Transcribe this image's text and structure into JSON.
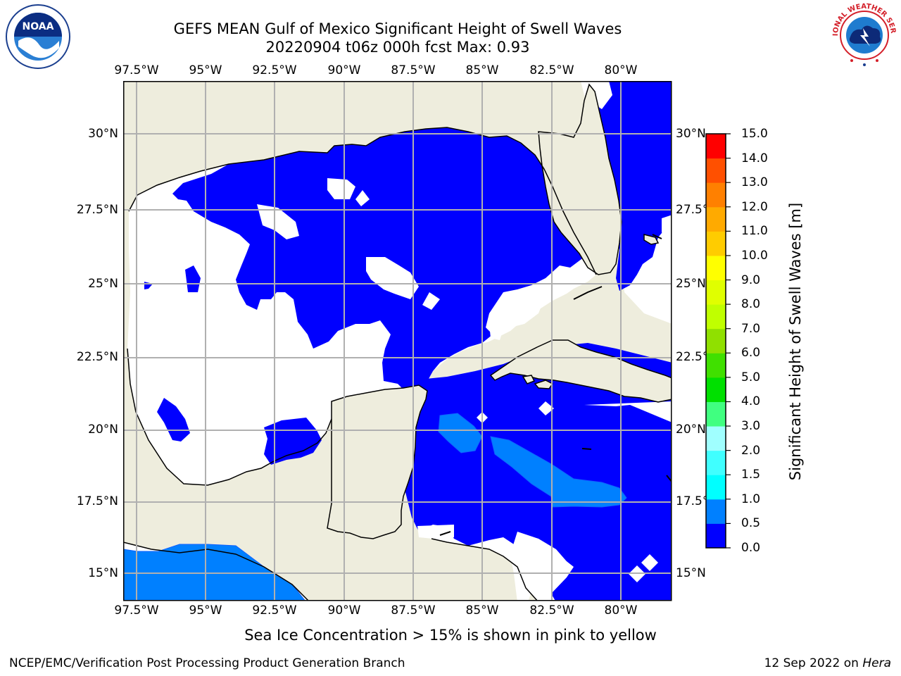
{
  "title_line1": "GEFS MEAN Gulf of Mexico Significant Height of Swell Waves",
  "title_line2": "20220904 t06z 000h fcst   Max: 0.93",
  "logos": {
    "left": "NOAA",
    "right": "NATIONAL WEATHER SERVICE"
  },
  "map": {
    "lon_range": [
      -98.5,
      -78.5
    ],
    "lat_range": [
      14.0,
      31.8
    ],
    "lon_ticks": [
      "97.5°W",
      "95°W",
      "92.5°W",
      "90°W",
      "87.5°W",
      "85°W",
      "82.5°W",
      "80°W"
    ],
    "lat_ticks": [
      "30°N",
      "27.5°N",
      "25°N",
      "22.5°N",
      "20°N",
      "17.5°N",
      "15°N"
    ],
    "gridlines": true,
    "colors": {
      "land": "#eeeddd",
      "ocean_no_swell": "#ffffff",
      "grid": "#b0b0b0"
    }
  },
  "colorbar": {
    "label": "Significant Height of Swell Waves [m]",
    "ticks": [
      "15.0",
      "14.0",
      "13.0",
      "12.0",
      "11.0",
      "10.0",
      "9.0",
      "8.0",
      "7.0",
      "6.0",
      "5.0",
      "4.0",
      "3.0",
      "2.0",
      "1.5",
      "1.0",
      "0.5",
      "0.0"
    ],
    "levels": [
      0.0,
      0.5,
      1.0,
      1.5,
      2.0,
      3.0,
      4.0,
      5.0,
      6.0,
      7.0,
      8.0,
      9.0,
      10.0,
      11.0,
      12.0,
      13.0,
      14.0,
      15.0
    ],
    "colors": [
      "#0000ff",
      "#0080ff",
      "#00ffff",
      "#40ffff",
      "#a0ffff",
      "#40ff80",
      "#00e000",
      "#40e000",
      "#90e000",
      "#c0ff00",
      "#e0ff00",
      "#ffff00",
      "#ffcc00",
      "#ffaa00",
      "#ff8000",
      "#ff5000",
      "#ff0000"
    ]
  },
  "note": "Sea Ice Concentration > 15% is shown in pink to yellow",
  "credit": "NCEP/EMC/Verification Post Processing Product Generation Branch",
  "date": "12 Sep 2022 on",
  "host": "Hera"
}
